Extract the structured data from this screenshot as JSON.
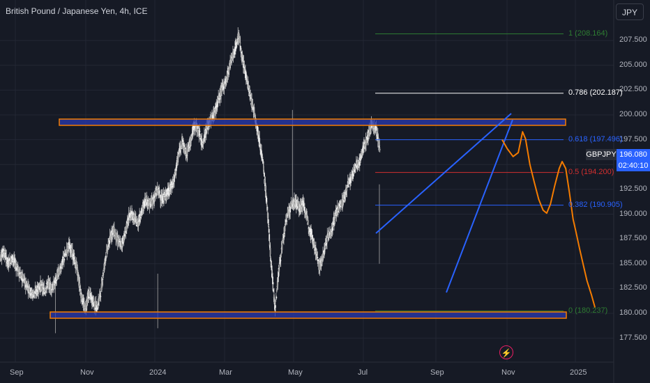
{
  "header": {
    "title": "British Pound / Japanese Yen, 4h, ICE",
    "currency": "JPY"
  },
  "price_tag": {
    "symbol": "GBPJPY",
    "price": "196.080",
    "countdown": "02:40:10"
  },
  "fib_levels": [
    {
      "label": "1 (208.164)",
      "value": 208.164,
      "color": "#2e7d32"
    },
    {
      "label": "0.786 (202.187)",
      "value": 202.187,
      "color": "#ffffff"
    },
    {
      "label": "0.618 (197.496)",
      "value": 197.496,
      "color": "#2962ff"
    },
    {
      "label": "0.5 (194.200)",
      "value": 194.2,
      "color": "#d32f2f"
    },
    {
      "label": "0.382 (190.905)",
      "value": 190.905,
      "color": "#2962ff"
    },
    {
      "label": "0 (180.237)",
      "value": 180.237,
      "color": "#2e7d32"
    }
  ],
  "colors": {
    "background": "#161a25",
    "candles": "#e8e8e8",
    "zone_fill": "#2a3ab0",
    "zone_border": "#f57c00",
    "trendline": "#2962ff",
    "projection": "#f57c00"
  },
  "chart_data": {
    "type": "line",
    "title": "British Pound / Japanese Yen, 4h, ICE",
    "x_ticks": [
      "Sep",
      "Nov",
      "2024",
      "Mar",
      "May",
      "Jul",
      "Sep",
      "Nov",
      "2025"
    ],
    "y_ticks": [
      "177.500",
      "180.000",
      "182.500",
      "185.000",
      "187.500",
      "190.000",
      "192.500",
      "195.000",
      "197.500",
      "200.000",
      "202.500",
      "205.000",
      "207.500"
    ],
    "ylim": [
      176.0,
      210.5
    ],
    "series": [
      {
        "values": [
          [
            0.0,
            185.8
          ],
          [
            0.01,
            186.2
          ],
          [
            0.02,
            185.0
          ],
          [
            0.03,
            185.6
          ],
          [
            0.04,
            184.8
          ],
          [
            0.05,
            183.9
          ],
          [
            0.06,
            183.2
          ],
          [
            0.07,
            182.6
          ],
          [
            0.08,
            181.9
          ],
          [
            0.09,
            182.2
          ],
          [
            0.1,
            182.8
          ],
          [
            0.11,
            182.3
          ],
          [
            0.12,
            183.0
          ],
          [
            0.13,
            182.5
          ],
          [
            0.14,
            183.6
          ],
          [
            0.15,
            184.6
          ],
          [
            0.16,
            185.7
          ],
          [
            0.17,
            186.9
          ],
          [
            0.18,
            185.9
          ],
          [
            0.19,
            184.6
          ],
          [
            0.2,
            182.0
          ],
          [
            0.21,
            180.4
          ],
          [
            0.22,
            182.0
          ],
          [
            0.23,
            181.2
          ],
          [
            0.24,
            180.5
          ],
          [
            0.25,
            182.3
          ],
          [
            0.26,
            185.5
          ],
          [
            0.27,
            187.2
          ],
          [
            0.28,
            188.5
          ],
          [
            0.29,
            187.4
          ],
          [
            0.3,
            186.9
          ],
          [
            0.31,
            188.1
          ],
          [
            0.32,
            190.0
          ],
          [
            0.33,
            189.8
          ],
          [
            0.34,
            189.0
          ],
          [
            0.35,
            190.2
          ],
          [
            0.36,
            191.5
          ],
          [
            0.37,
            191.0
          ],
          [
            0.38,
            191.5
          ],
          [
            0.39,
            192.5
          ],
          [
            0.4,
            191.4
          ],
          [
            0.41,
            192.0
          ],
          [
            0.42,
            192.4
          ],
          [
            0.43,
            193.4
          ],
          [
            0.44,
            195.6
          ],
          [
            0.45,
            197.5
          ],
          [
            0.46,
            196.0
          ],
          [
            0.47,
            197.2
          ],
          [
            0.48,
            199.0
          ],
          [
            0.49,
            198.6
          ],
          [
            0.5,
            197.0
          ],
          [
            0.51,
            198.5
          ],
          [
            0.52,
            199.4
          ],
          [
            0.53,
            200.2
          ],
          [
            0.54,
            201.5
          ],
          [
            0.55,
            202.7
          ],
          [
            0.56,
            203.6
          ],
          [
            0.57,
            205.4
          ],
          [
            0.58,
            206.4
          ],
          [
            0.59,
            208.1
          ],
          [
            0.6,
            205.3
          ],
          [
            0.61,
            203.7
          ],
          [
            0.62,
            201.6
          ],
          [
            0.63,
            200.0
          ],
          [
            0.64,
            197.8
          ],
          [
            0.65,
            195.2
          ],
          [
            0.66,
            191.0
          ],
          [
            0.67,
            185.2
          ],
          [
            0.68,
            180.5
          ],
          [
            0.69,
            184.6
          ],
          [
            0.7,
            187.4
          ],
          [
            0.71,
            189.9
          ],
          [
            0.72,
            190.8
          ],
          [
            0.73,
            191.3
          ],
          [
            0.74,
            190.6
          ],
          [
            0.75,
            191.1
          ],
          [
            0.76,
            189.3
          ],
          [
            0.77,
            188.0
          ],
          [
            0.78,
            186.4
          ],
          [
            0.79,
            184.6
          ],
          [
            0.8,
            186.0
          ],
          [
            0.81,
            187.8
          ],
          [
            0.82,
            188.3
          ],
          [
            0.83,
            190.0
          ],
          [
            0.84,
            190.8
          ],
          [
            0.85,
            191.5
          ],
          [
            0.86,
            193.0
          ],
          [
            0.87,
            193.7
          ],
          [
            0.88,
            194.9
          ],
          [
            0.89,
            195.4
          ],
          [
            0.9,
            196.9
          ],
          [
            0.91,
            197.9
          ],
          [
            0.92,
            199.1
          ],
          [
            0.93,
            198.4
          ],
          [
            0.94,
            196.5
          ]
        ]
      },
      {
        "name": "",
        "values": [
          [
            0.93,
            197.5
          ],
          [
            0.937,
            196.6
          ],
          [
            0.945,
            195.8
          ],
          [
            0.952,
            196.2
          ],
          [
            0.958,
            198.3
          ],
          [
            0.962,
            197.6
          ],
          [
            0.968,
            195.0
          ],
          [
            0.974,
            193.2
          ],
          [
            0.98,
            191.5
          ],
          [
            0.986,
            190.4
          ],
          [
            0.991,
            190.1
          ],
          [
            0.996,
            191.0
          ],
          [
            1.002,
            192.9
          ],
          [
            1.008,
            194.6
          ],
          [
            1.012,
            195.3
          ],
          [
            1.017,
            194.6
          ],
          [
            1.022,
            192.2
          ],
          [
            1.027,
            189.5
          ],
          [
            1.031,
            188.2
          ],
          [
            1.036,
            186.5
          ],
          [
            1.041,
            184.9
          ],
          [
            1.046,
            183.3
          ],
          [
            1.052,
            181.9
          ],
          [
            1.057,
            180.6
          ]
        ]
      }
    ]
  }
}
